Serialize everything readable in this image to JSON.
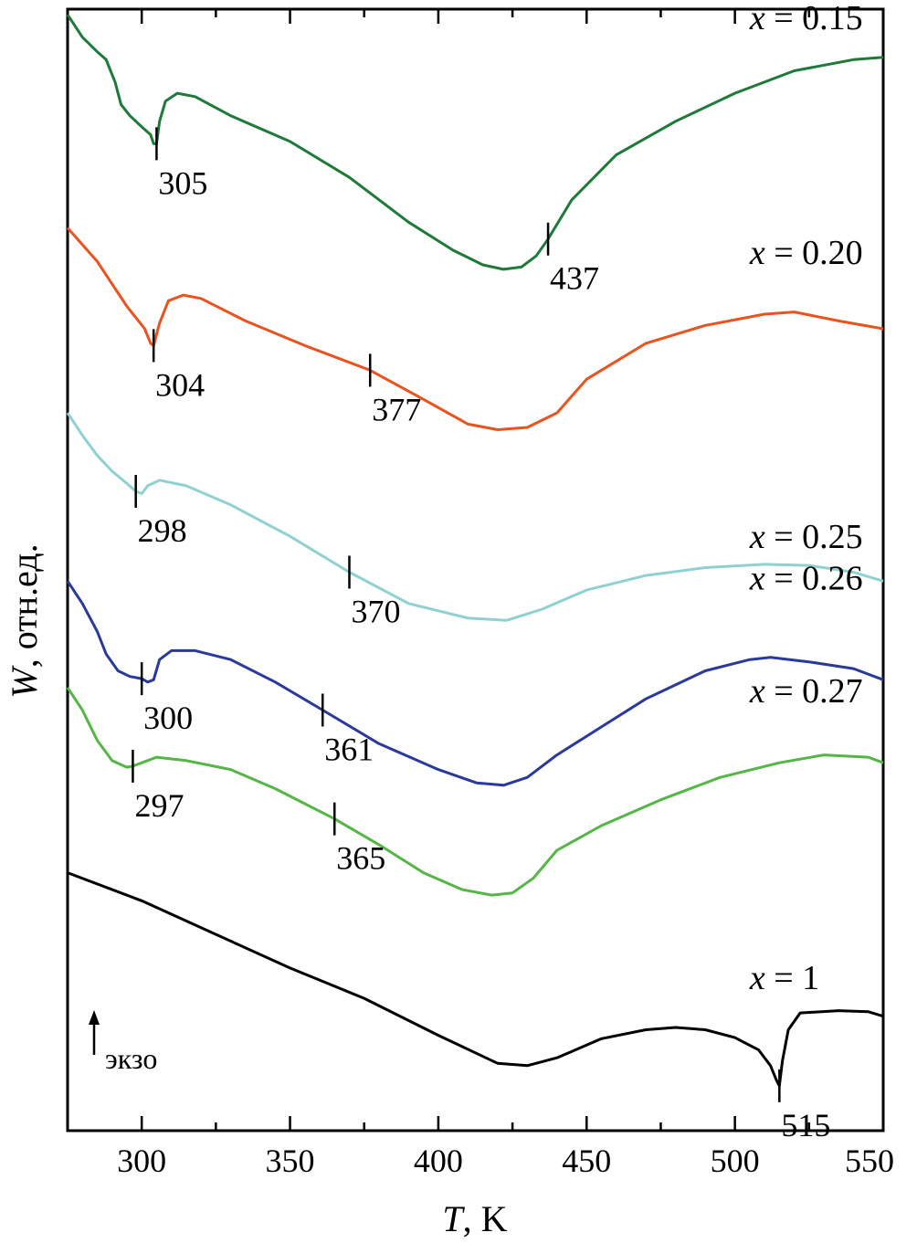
{
  "chart_data": {
    "type": "line",
    "xlabel_var": "T",
    "xlabel_unit": ", K",
    "ylabel_var": "W",
    "ylabel_unit": ", отн.ед.",
    "xlim": [
      275,
      550
    ],
    "xticks": [
      300,
      350,
      400,
      450,
      500,
      550
    ],
    "minor_xtick_step": 25,
    "grid": false,
    "exo_label": "экзо",
    "series": [
      {
        "name": "x = 0.15",
        "label_var": "x",
        "label_rest": " = 0.15",
        "color": "#1f7a3a",
        "points": [
          [
            275,
            0.995
          ],
          [
            280,
            0.975
          ],
          [
            285,
            0.962
          ],
          [
            288,
            0.955
          ],
          [
            291,
            0.935
          ],
          [
            293,
            0.915
          ],
          [
            296,
            0.905
          ],
          [
            300,
            0.895
          ],
          [
            303,
            0.888
          ],
          [
            304,
            0.88
          ],
          [
            305,
            0.88
          ],
          [
            306,
            0.9
          ],
          [
            308,
            0.918
          ],
          [
            312,
            0.925
          ],
          [
            318,
            0.922
          ],
          [
            330,
            0.905
          ],
          [
            350,
            0.882
          ],
          [
            370,
            0.85
          ],
          [
            390,
            0.81
          ],
          [
            405,
            0.785
          ],
          [
            415,
            0.772
          ],
          [
            422,
            0.768
          ],
          [
            428,
            0.77
          ],
          [
            433,
            0.78
          ],
          [
            437,
            0.795
          ],
          [
            445,
            0.83
          ],
          [
            460,
            0.87
          ],
          [
            480,
            0.9
          ],
          [
            500,
            0.925
          ],
          [
            520,
            0.945
          ],
          [
            540,
            0.955
          ],
          [
            550,
            0.957
          ]
        ],
        "markers": [
          {
            "t": 305,
            "text": "305"
          },
          {
            "t": 437,
            "text": "437"
          }
        ]
      },
      {
        "name": "x = 0.20",
        "label_var": "x",
        "label_rest": " = 0.20",
        "color": "#e8531f",
        "points": [
          [
            275,
            0.805
          ],
          [
            280,
            0.79
          ],
          [
            285,
            0.775
          ],
          [
            290,
            0.755
          ],
          [
            295,
            0.735
          ],
          [
            298,
            0.725
          ],
          [
            301,
            0.715
          ],
          [
            303,
            0.702
          ],
          [
            304,
            0.7
          ],
          [
            306,
            0.72
          ],
          [
            309,
            0.74
          ],
          [
            314,
            0.745
          ],
          [
            320,
            0.742
          ],
          [
            335,
            0.722
          ],
          [
            355,
            0.7
          ],
          [
            377,
            0.678
          ],
          [
            395,
            0.652
          ],
          [
            410,
            0.63
          ],
          [
            420,
            0.625
          ],
          [
            430,
            0.627
          ],
          [
            440,
            0.64
          ],
          [
            450,
            0.67
          ],
          [
            470,
            0.702
          ],
          [
            490,
            0.718
          ],
          [
            510,
            0.728
          ],
          [
            520,
            0.73
          ],
          [
            535,
            0.722
          ],
          [
            550,
            0.715
          ]
        ],
        "markers": [
          {
            "t": 304,
            "text": "304"
          },
          {
            "t": 377,
            "text": "377"
          }
        ]
      },
      {
        "name": "x = 0.25",
        "label_var": "x",
        "label_rest": " = 0.25",
        "color": "#8fd1d1",
        "points": [
          [
            275,
            0.64
          ],
          [
            280,
            0.62
          ],
          [
            285,
            0.602
          ],
          [
            290,
            0.588
          ],
          [
            295,
            0.577
          ],
          [
            298,
            0.57
          ],
          [
            300,
            0.568
          ],
          [
            302,
            0.575
          ],
          [
            306,
            0.58
          ],
          [
            315,
            0.575
          ],
          [
            330,
            0.558
          ],
          [
            350,
            0.53
          ],
          [
            370,
            0.498
          ],
          [
            390,
            0.47
          ],
          [
            410,
            0.457
          ],
          [
            423,
            0.455
          ],
          [
            435,
            0.465
          ],
          [
            450,
            0.482
          ],
          [
            470,
            0.495
          ],
          [
            490,
            0.502
          ],
          [
            510,
            0.505
          ],
          [
            525,
            0.504
          ],
          [
            540,
            0.498
          ],
          [
            550,
            0.49
          ]
        ],
        "markers": [
          {
            "t": 298,
            "text": "298"
          },
          {
            "t": 370,
            "text": "370"
          }
        ]
      },
      {
        "name": "x = 0.26",
        "label_var": "x",
        "label_rest": " = 0.26",
        "color": "#2b3a9a",
        "points": [
          [
            275,
            0.49
          ],
          [
            280,
            0.47
          ],
          [
            285,
            0.445
          ],
          [
            288,
            0.425
          ],
          [
            292,
            0.41
          ],
          [
            296,
            0.405
          ],
          [
            300,
            0.403
          ],
          [
            302,
            0.4
          ],
          [
            304,
            0.402
          ],
          [
            306,
            0.42
          ],
          [
            310,
            0.428
          ],
          [
            318,
            0.428
          ],
          [
            330,
            0.42
          ],
          [
            345,
            0.4
          ],
          [
            361,
            0.375
          ],
          [
            380,
            0.345
          ],
          [
            400,
            0.322
          ],
          [
            413,
            0.31
          ],
          [
            422,
            0.308
          ],
          [
            430,
            0.315
          ],
          [
            440,
            0.335
          ],
          [
            455,
            0.36
          ],
          [
            470,
            0.385
          ],
          [
            490,
            0.41
          ],
          [
            505,
            0.42
          ],
          [
            512,
            0.422
          ],
          [
            525,
            0.418
          ],
          [
            540,
            0.412
          ],
          [
            550,
            0.402
          ]
        ],
        "markers": [
          {
            "t": 300,
            "text": "300"
          },
          {
            "t": 361,
            "text": "361"
          }
        ]
      },
      {
        "name": "x = 0.27",
        "label_var": "x",
        "label_rest": " = 0.27",
        "color": "#55b547",
        "points": [
          [
            275,
            0.395
          ],
          [
            280,
            0.375
          ],
          [
            285,
            0.348
          ],
          [
            290,
            0.33
          ],
          [
            295,
            0.324
          ],
          [
            297,
            0.325
          ],
          [
            300,
            0.328
          ],
          [
            305,
            0.333
          ],
          [
            315,
            0.33
          ],
          [
            330,
            0.322
          ],
          [
            345,
            0.305
          ],
          [
            365,
            0.278
          ],
          [
            380,
            0.255
          ],
          [
            395,
            0.23
          ],
          [
            408,
            0.215
          ],
          [
            418,
            0.21
          ],
          [
            425,
            0.212
          ],
          [
            432,
            0.225
          ],
          [
            440,
            0.25
          ],
          [
            455,
            0.272
          ],
          [
            475,
            0.295
          ],
          [
            495,
            0.315
          ],
          [
            515,
            0.328
          ],
          [
            530,
            0.335
          ],
          [
            545,
            0.333
          ],
          [
            550,
            0.328
          ]
        ],
        "markers": [
          {
            "t": 297,
            "text": "297"
          },
          {
            "t": 365,
            "text": "365"
          }
        ]
      },
      {
        "name": "x = 1",
        "label_var": "x",
        "label_rest": " = 1",
        "color": "#000000",
        "points": [
          [
            275,
            0.23
          ],
          [
            300,
            0.205
          ],
          [
            325,
            0.175
          ],
          [
            350,
            0.145
          ],
          [
            375,
            0.118
          ],
          [
            400,
            0.085
          ],
          [
            420,
            0.06
          ],
          [
            430,
            0.058
          ],
          [
            440,
            0.065
          ],
          [
            455,
            0.082
          ],
          [
            470,
            0.09
          ],
          [
            480,
            0.092
          ],
          [
            490,
            0.09
          ],
          [
            500,
            0.083
          ],
          [
            508,
            0.072
          ],
          [
            512,
            0.058
          ],
          [
            514,
            0.045
          ],
          [
            515,
            0.04
          ],
          [
            516,
            0.062
          ],
          [
            518,
            0.09
          ],
          [
            522,
            0.105
          ],
          [
            535,
            0.107
          ],
          [
            545,
            0.106
          ],
          [
            550,
            0.102
          ]
        ],
        "markers": [
          {
            "t": 515,
            "text": "515"
          }
        ]
      }
    ]
  }
}
